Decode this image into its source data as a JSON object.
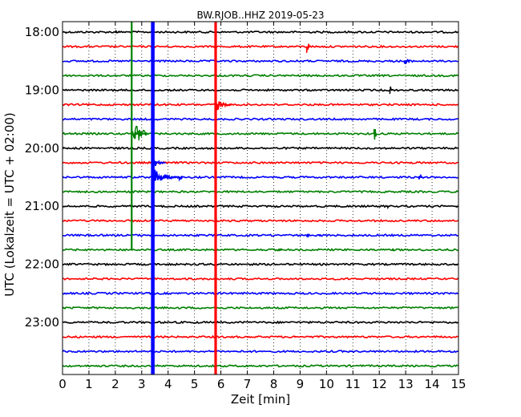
{
  "chart_data": {
    "type": "line",
    "title": "BW.RJOB..HHZ 2019-05-23",
    "xlabel": "Zeit  [min]",
    "ylabel": "UTC (Lokalzeit = UTC + 02:00)",
    "xlim": [
      0,
      15
    ],
    "x_ticks": [
      0,
      1,
      2,
      3,
      4,
      5,
      6,
      7,
      8,
      9,
      10,
      11,
      12,
      13,
      14,
      15
    ],
    "x_tick_labels": [
      "0",
      "1",
      "2",
      "3",
      "4",
      "5",
      "6",
      "7",
      "8",
      "9",
      "10",
      "11",
      "12",
      "13",
      "14",
      "15"
    ],
    "y_tick_labels": [
      "18:00",
      "19:00",
      "20:00",
      "21:00",
      "22:00",
      "23:00"
    ],
    "y_tick_rows": [
      0,
      4,
      8,
      12,
      16,
      20
    ],
    "grid": "vertical dotted",
    "colors": [
      "#000000",
      "#ff0000",
      "#0000ff",
      "#008000"
    ],
    "rows": [
      {
        "label": "18:00",
        "color": "#000000"
      },
      {
        "label": "18:15",
        "color": "#ff0000"
      },
      {
        "label": "18:30",
        "color": "#0000ff"
      },
      {
        "label": "18:45",
        "color": "#008000"
      },
      {
        "label": "19:00",
        "color": "#000000"
      },
      {
        "label": "19:15",
        "color": "#ff0000"
      },
      {
        "label": "19:30",
        "color": "#0000ff"
      },
      {
        "label": "19:45",
        "color": "#008000"
      },
      {
        "label": "20:00",
        "color": "#000000"
      },
      {
        "label": "20:15",
        "color": "#ff0000"
      },
      {
        "label": "20:30",
        "color": "#0000ff"
      },
      {
        "label": "20:45",
        "color": "#008000"
      },
      {
        "label": "21:00",
        "color": "#000000"
      },
      {
        "label": "21:15",
        "color": "#ff0000"
      },
      {
        "label": "21:30",
        "color": "#0000ff"
      },
      {
        "label": "21:45",
        "color": "#008000"
      },
      {
        "label": "22:00",
        "color": "#000000"
      },
      {
        "label": "22:15",
        "color": "#ff0000"
      },
      {
        "label": "22:30",
        "color": "#0000ff"
      },
      {
        "label": "22:45",
        "color": "#008000"
      },
      {
        "label": "23:00",
        "color": "#000000"
      },
      {
        "label": "23:15",
        "color": "#ff0000"
      },
      {
        "label": "23:30",
        "color": "#0000ff"
      },
      {
        "label": "23:45",
        "color": "#008000"
      }
    ],
    "events": [
      {
        "row": 0,
        "x": 2.0,
        "amp": 2,
        "dur": 0.15
      },
      {
        "row": 1,
        "x": 9.25,
        "amp": 9,
        "dur": 0.1
      },
      {
        "row": 2,
        "x": 12.95,
        "amp": 5,
        "dur": 0.2
      },
      {
        "row": 4,
        "x": 12.4,
        "amp": 6,
        "dur": 0.1
      },
      {
        "row": 7,
        "x": 11.8,
        "amp": 9,
        "dur": 0.1
      },
      {
        "row": 7,
        "x": 2.7,
        "amp": 12,
        "dur": 0.5
      },
      {
        "row": 10,
        "x": 4.4,
        "amp": 5,
        "dur": 0.15
      },
      {
        "row": 10,
        "x": 13.5,
        "amp": 4,
        "dur": 0.2
      },
      {
        "row": 12,
        "x": 12.3,
        "amp": 3,
        "dur": 0.1
      },
      {
        "row": 14,
        "x": 9.25,
        "amp": 3,
        "dur": 0.1
      },
      {
        "row": 14,
        "x": 9.7,
        "amp": 2,
        "dur": 0.1
      },
      {
        "row": 15,
        "x": 8.2,
        "amp": 4,
        "dur": 0.1
      },
      {
        "row": 15,
        "x": 12.5,
        "amp": 2,
        "dur": 0.05
      },
      {
        "row": 21,
        "x": 8.8,
        "amp": 2,
        "dur": 0.05
      }
    ],
    "vertical_spikes": [
      {
        "x": 2.62,
        "color": "#008000",
        "row_from": -1.5,
        "row_to": 15.0
      },
      {
        "x": 3.42,
        "color": "#0000ff",
        "row_from": -1.5,
        "row_to": 24.5
      },
      {
        "x": 5.8,
        "color": "#ff0000",
        "row_from": -1.5,
        "row_to": 24.5
      }
    ],
    "codas": [
      {
        "row": 5,
        "x": 5.8,
        "amp": 10,
        "dur": 0.6,
        "color": "#ff0000"
      },
      {
        "row": 7,
        "x": 2.62,
        "amp": 14,
        "dur": 0.6,
        "color": "#008000"
      },
      {
        "row": 10,
        "x": 3.42,
        "amp": 12,
        "dur": 1.0,
        "color": "#0000ff"
      },
      {
        "row": 9,
        "x": 3.42,
        "amp": 8,
        "dur": 0.5,
        "color": "#0000ff"
      }
    ]
  }
}
